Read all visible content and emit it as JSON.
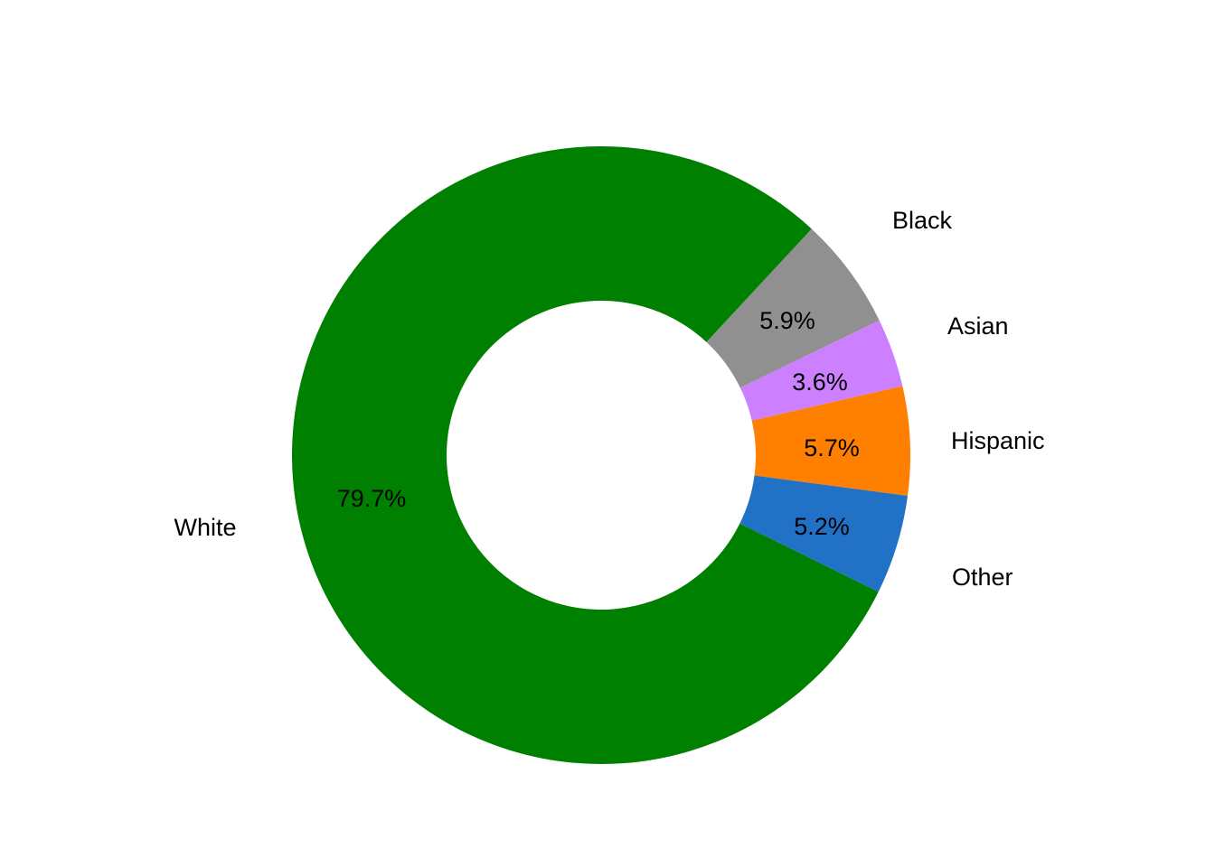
{
  "chart_data": {
    "type": "pie",
    "variant": "donut",
    "categories": [
      "White",
      "Black",
      "Asian",
      "Hispanic",
      "Other"
    ],
    "values": [
      79.7,
      5.9,
      3.6,
      5.7,
      5.2
    ],
    "value_labels": [
      "79.7%",
      "5.9%",
      "3.6%",
      "5.7%",
      "5.2%"
    ],
    "colors": [
      "#008000",
      "#909090",
      "#CC80FF",
      "#FF8000",
      "#2171C7"
    ],
    "title": "",
    "legend": "none"
  }
}
